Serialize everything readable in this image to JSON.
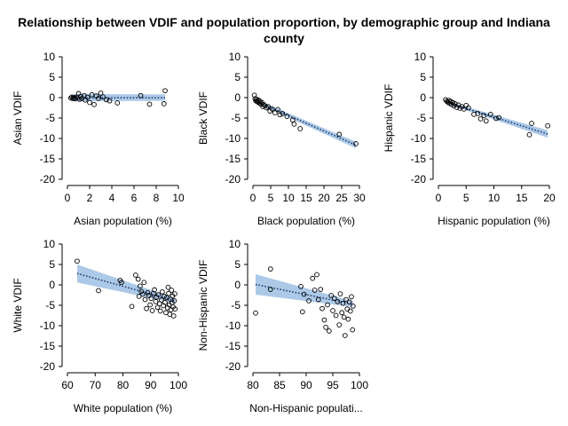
{
  "title": "Relationship between VDIF and population proportion, by demographic group and Indiana county",
  "chart_data": [
    {
      "type": "scatter",
      "xlabel": "Asian population (%)",
      "ylabel": "Asian VDIF",
      "xlim": [
        0,
        10
      ],
      "ylim": [
        -20,
        10
      ],
      "xticks": [
        0,
        2,
        4,
        6,
        8,
        10
      ],
      "yticks": [
        10,
        5,
        0,
        -5,
        -10,
        -15,
        -20
      ],
      "points": [
        [
          0.3,
          -0.1
        ],
        [
          0.4,
          0.1
        ],
        [
          0.5,
          -0.2
        ],
        [
          0.6,
          0.0
        ],
        [
          0.7,
          -0.3
        ],
        [
          0.8,
          0.1
        ],
        [
          0.9,
          -0.1
        ],
        [
          1.0,
          1.0
        ],
        [
          1.1,
          -0.4
        ],
        [
          1.2,
          0.3
        ],
        [
          1.3,
          -0.2
        ],
        [
          1.5,
          0.5
        ],
        [
          1.6,
          -0.6
        ],
        [
          1.8,
          0.1
        ],
        [
          2.0,
          -1.2
        ],
        [
          2.2,
          0.7
        ],
        [
          2.4,
          -1.7
        ],
        [
          2.6,
          0.4
        ],
        [
          2.8,
          -0.2
        ],
        [
          3.0,
          1.1
        ],
        [
          3.2,
          0.2
        ],
        [
          3.5,
          -0.5
        ],
        [
          3.8,
          -0.8
        ],
        [
          4.5,
          -1.3
        ],
        [
          6.6,
          0.5
        ],
        [
          7.4,
          -1.6
        ],
        [
          8.7,
          -1.5
        ],
        [
          8.8,
          1.7
        ]
      ],
      "fit": {
        "x": [
          0.3,
          8.8
        ],
        "y": [
          -0.05,
          -0.05
        ],
        "ci_low": [
          -0.9,
          -0.8
        ],
        "ci_high": [
          0.9,
          0.8
        ]
      }
    },
    {
      "type": "scatter",
      "xlabel": "Black population (%)",
      "ylabel": "Black VDIF",
      "xlim": [
        0,
        30
      ],
      "ylim": [
        -20,
        10
      ],
      "xticks": [
        0,
        5,
        10,
        15,
        20,
        25,
        30
      ],
      "yticks": [
        10,
        5,
        0,
        -5,
        -10,
        -15,
        -20
      ],
      "points": [
        [
          0.4,
          0.6
        ],
        [
          0.6,
          -0.3
        ],
        [
          0.8,
          -0.8
        ],
        [
          1.0,
          -0.4
        ],
        [
          1.2,
          -0.9
        ],
        [
          1.4,
          -1.1
        ],
        [
          1.6,
          -0.6
        ],
        [
          1.8,
          -1.3
        ],
        [
          2.0,
          -0.9
        ],
        [
          2.2,
          -1.6
        ],
        [
          2.5,
          -1.2
        ],
        [
          2.8,
          -2.2
        ],
        [
          3.0,
          -1.7
        ],
        [
          3.4,
          -2.0
        ],
        [
          3.8,
          -2.5
        ],
        [
          4.3,
          -2.2
        ],
        [
          4.8,
          -3.3
        ],
        [
          5.4,
          -2.8
        ],
        [
          6.2,
          -3.7
        ],
        [
          7.0,
          -2.9
        ],
        [
          7.6,
          -4.2
        ],
        [
          8.3,
          -3.9
        ],
        [
          9.6,
          -4.6
        ],
        [
          11.2,
          -5.5
        ],
        [
          11.6,
          -6.5
        ],
        [
          13.3,
          -7.6
        ],
        [
          24.3,
          -9.0
        ],
        [
          29.0,
          -11.3
        ]
      ],
      "fit": {
        "x": [
          0.4,
          29.0
        ],
        "y": [
          -0.7,
          -11.6
        ],
        "ci_low": [
          -1.1,
          -12.4
        ],
        "ci_high": [
          -0.3,
          -10.8
        ]
      }
    },
    {
      "type": "scatter",
      "xlabel": "Hispanic population (%)",
      "ylabel": "Hispanic VDIF",
      "xlim": [
        0,
        20
      ],
      "ylim": [
        -20,
        10
      ],
      "xticks": [
        0,
        5,
        10,
        15,
        20
      ],
      "yticks": [
        10,
        5,
        0,
        -5,
        -10,
        -15,
        -20
      ],
      "points": [
        [
          1.3,
          -0.5
        ],
        [
          1.5,
          -0.9
        ],
        [
          1.7,
          -1.1
        ],
        [
          1.9,
          -0.7
        ],
        [
          2.0,
          -1.4
        ],
        [
          2.2,
          -0.9
        ],
        [
          2.4,
          -1.7
        ],
        [
          2.6,
          -1.2
        ],
        [
          2.8,
          -2.0
        ],
        [
          3.0,
          -1.5
        ],
        [
          3.3,
          -2.4
        ],
        [
          3.6,
          -1.8
        ],
        [
          3.9,
          -2.6
        ],
        [
          4.2,
          -2.2
        ],
        [
          4.6,
          -2.8
        ],
        [
          5.0,
          -1.9
        ],
        [
          5.4,
          -2.5
        ],
        [
          6.4,
          -4.1
        ],
        [
          7.1,
          -3.9
        ],
        [
          7.6,
          -5.2
        ],
        [
          8.2,
          -4.4
        ],
        [
          8.6,
          -5.7
        ],
        [
          9.4,
          -4.1
        ],
        [
          10.4,
          -5.1
        ],
        [
          10.9,
          -4.9
        ],
        [
          16.4,
          -9.1
        ],
        [
          16.8,
          -6.3
        ],
        [
          19.7,
          -6.9
        ]
      ],
      "fit": {
        "x": [
          1.3,
          19.7
        ],
        "y": [
          -1.1,
          -8.9
        ],
        "ci_low": [
          -1.4,
          -9.8
        ],
        "ci_high": [
          -0.8,
          -8.0
        ]
      }
    },
    {
      "type": "scatter",
      "xlabel": "White population (%)",
      "ylabel": "White VDIF",
      "xlim": [
        60,
        100
      ],
      "ylim": [
        -20,
        10
      ],
      "xticks": [
        60,
        70,
        80,
        90,
        100
      ],
      "yticks": [
        10,
        5,
        0,
        -5,
        -10,
        -15,
        -20
      ],
      "points": [
        [
          63.5,
          5.8
        ],
        [
          71.2,
          -1.4
        ],
        [
          79.0,
          1.1
        ],
        [
          79.5,
          0.6
        ],
        [
          83.2,
          -5.3
        ],
        [
          84.6,
          2.4
        ],
        [
          85.5,
          1.4
        ],
        [
          85.8,
          -2.8
        ],
        [
          86.2,
          -0.3
        ],
        [
          86.6,
          -1.6
        ],
        [
          87.1,
          -2.3
        ],
        [
          87.6,
          0.6
        ],
        [
          88.0,
          -3.6
        ],
        [
          88.5,
          -5.8
        ],
        [
          88.9,
          -1.9
        ],
        [
          89.3,
          -2.6
        ],
        [
          89.8,
          -4.9
        ],
        [
          90.2,
          -3.3
        ],
        [
          90.6,
          -6.3
        ],
        [
          91.0,
          -2.1
        ],
        [
          91.4,
          -1.2
        ],
        [
          91.8,
          -4.1
        ],
        [
          92.1,
          -3.0
        ],
        [
          92.5,
          -5.5
        ],
        [
          92.8,
          -2.4
        ],
        [
          93.2,
          -4.6
        ],
        [
          93.5,
          -6.4
        ],
        [
          93.9,
          -3.7
        ],
        [
          94.2,
          -1.7
        ],
        [
          94.6,
          -5.1
        ],
        [
          94.9,
          -2.8
        ],
        [
          95.2,
          -4.3
        ],
        [
          95.5,
          -6.8
        ],
        [
          95.8,
          -3.1
        ],
        [
          96.1,
          -5.6
        ],
        [
          96.3,
          -0.6
        ],
        [
          96.5,
          -2.1
        ],
        [
          96.7,
          -4.9
        ],
        [
          96.9,
          -7.2
        ],
        [
          97.1,
          -3.5
        ],
        [
          97.3,
          -6.1
        ],
        [
          97.5,
          -1.3
        ],
        [
          97.7,
          -4.4
        ],
        [
          97.9,
          -2.7
        ],
        [
          98.1,
          -5.4
        ],
        [
          98.3,
          -7.6
        ],
        [
          98.5,
          -3.9
        ],
        [
          98.7,
          -2.2
        ],
        [
          98.8,
          -5.9
        ]
      ],
      "fit": {
        "x": [
          63.5,
          98.8
        ],
        "y": [
          2.8,
          -3.9
        ],
        "ci_low": [
          0.6,
          -4.5
        ],
        "ci_high": [
          5.0,
          -3.3
        ]
      }
    },
    {
      "type": "scatter",
      "xlabel": "Non-Hispanic populati...",
      "ylabel": "Non-Hispanic VDIF",
      "xlim": [
        80,
        100
      ],
      "ylim": [
        -20,
        10
      ],
      "xticks": [
        80,
        85,
        90,
        95,
        100
      ],
      "yticks": [
        10,
        5,
        0,
        -5,
        -10,
        -15,
        -20
      ],
      "points": [
        [
          80.5,
          -6.9
        ],
        [
          83.3,
          3.9
        ],
        [
          83.3,
          -1.1
        ],
        [
          89.0,
          -0.4
        ],
        [
          89.3,
          -6.6
        ],
        [
          89.6,
          -2.3
        ],
        [
          90.5,
          -3.9
        ],
        [
          91.2,
          1.6
        ],
        [
          91.6,
          -1.3
        ],
        [
          92.0,
          2.5
        ],
        [
          92.3,
          -3.6
        ],
        [
          92.7,
          -1.1
        ],
        [
          93.0,
          -5.8
        ],
        [
          93.4,
          -8.6
        ],
        [
          93.7,
          -10.4
        ],
        [
          94.0,
          -4.9
        ],
        [
          94.3,
          -11.3
        ],
        [
          94.7,
          -2.6
        ],
        [
          95.0,
          -6.3
        ],
        [
          95.3,
          -3.3
        ],
        [
          95.6,
          -7.5
        ],
        [
          95.9,
          -4.1
        ],
        [
          96.2,
          -9.8
        ],
        [
          96.4,
          -2.2
        ],
        [
          96.7,
          -6.8
        ],
        [
          96.9,
          -4.5
        ],
        [
          97.1,
          -7.9
        ],
        [
          97.3,
          -12.4
        ],
        [
          97.5,
          -3.6
        ],
        [
          97.7,
          -5.9
        ],
        [
          97.9,
          -8.4
        ],
        [
          98.1,
          -4.2
        ],
        [
          98.3,
          -6.4
        ],
        [
          98.5,
          -2.9
        ],
        [
          98.7,
          -11.0
        ],
        [
          98.8,
          -5.2
        ]
      ],
      "fit": {
        "x": [
          80.5,
          98.8
        ],
        "y": [
          0.1,
          -4.7
        ],
        "ci_low": [
          -2.4,
          -5.4
        ],
        "ci_high": [
          2.6,
          -4.0
        ]
      }
    }
  ]
}
